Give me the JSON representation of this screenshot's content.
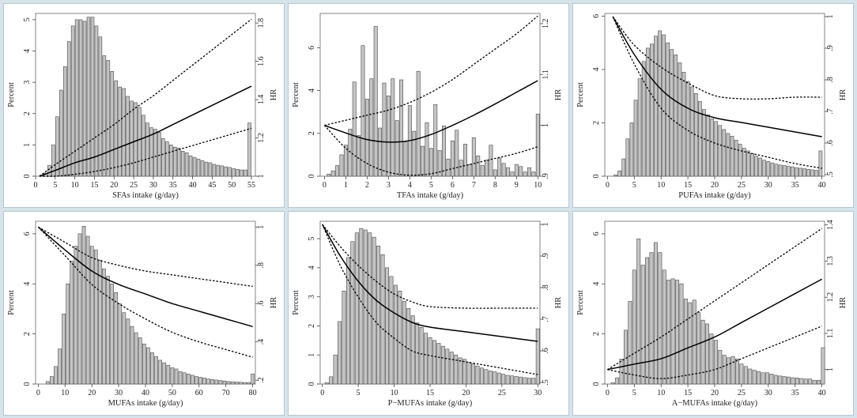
{
  "figure": {
    "background": "#d6e3ea",
    "bar_fill": "#c4c4c4",
    "bar_stroke": "#4a4a4a",
    "line_color": "#000000"
  },
  "chart_data": [
    {
      "type": "bar",
      "xlabel": "SFAs intake (g/day)",
      "ylabel": "Percent",
      "y2label": "HR",
      "xlim": [
        0,
        56
      ],
      "ylim": [
        0,
        5.2
      ],
      "y2lim": [
        1.0,
        1.85
      ],
      "xticks": [
        0,
        5,
        10,
        15,
        20,
        25,
        30,
        35,
        40,
        45,
        50,
        55
      ],
      "yticks": [
        0,
        1,
        2,
        3,
        4,
        5
      ],
      "y2ticks": [
        1,
        1.2,
        1.4,
        1.6,
        1.8
      ],
      "y2ticklabels": [
        "1",
        "1.2",
        "1.4",
        "1.6",
        "1.8"
      ],
      "bar_x": [
        1.5,
        2.5,
        3.5,
        4.5,
        5.5,
        6.5,
        7.5,
        8.5,
        9.5,
        10.5,
        11.5,
        12.5,
        13.5,
        14.5,
        15.5,
        16.5,
        17.5,
        18.5,
        19.5,
        20.5,
        21.5,
        22.5,
        23.5,
        24.5,
        25.5,
        26.5,
        27.5,
        28.5,
        29.5,
        30.5,
        31.5,
        32.5,
        33.5,
        34.5,
        35.5,
        36.5,
        37.5,
        38.5,
        39.5,
        40.5,
        41.5,
        42.5,
        43.5,
        44.5,
        45.5,
        46.5,
        47.5,
        48.5,
        49.5,
        50.5,
        51.5,
        52.5,
        53.5,
        54.5
      ],
      "bar_values": [
        0.03,
        0.1,
        0.35,
        1.0,
        1.9,
        2.75,
        3.5,
        4.3,
        4.8,
        5.0,
        5.0,
        4.95,
        5.08,
        5.08,
        4.8,
        4.45,
        3.85,
        3.7,
        3.35,
        3.05,
        2.85,
        2.8,
        2.55,
        2.4,
        2.35,
        2.2,
        1.95,
        1.7,
        1.55,
        1.5,
        1.4,
        1.2,
        1.1,
        1.0,
        0.93,
        0.9,
        0.8,
        0.75,
        0.65,
        0.6,
        0.55,
        0.5,
        0.45,
        0.43,
        0.38,
        0.35,
        0.33,
        0.3,
        0.28,
        0.24,
        0.22,
        0.2,
        0.2,
        1.7
      ],
      "hr": {
        "x": [
          1,
          5,
          10,
          15,
          20,
          25,
          30,
          35,
          40,
          45,
          50,
          55
        ],
        "estimate": [
          1.0,
          1.03,
          1.07,
          1.1,
          1.14,
          1.18,
          1.22,
          1.27,
          1.32,
          1.37,
          1.42,
          1.47
        ],
        "lower": [
          1.0,
          1.0,
          1.01,
          1.025,
          1.045,
          1.07,
          1.1,
          1.13,
          1.16,
          1.19,
          1.22,
          1.25
        ],
        "upper": [
          1.0,
          1.06,
          1.13,
          1.2,
          1.27,
          1.35,
          1.42,
          1.5,
          1.58,
          1.66,
          1.74,
          1.82
        ]
      }
    },
    {
      "type": "bar",
      "xlabel": "TFAs intake (g/day)",
      "ylabel": "Percent",
      "y2label": "HR",
      "xlim": [
        -0.2,
        10.1
      ],
      "ylim": [
        0,
        7.6
      ],
      "y2lim": [
        0.9,
        1.22
      ],
      "xticks": [
        0,
        1,
        2,
        3,
        4,
        5,
        6,
        7,
        8,
        9,
        10
      ],
      "yticks": [
        0,
        2,
        4,
        6
      ],
      "y2ticks": [
        0.9,
        1.0,
        1.1,
        1.2
      ],
      "y2ticklabels": [
        ".9",
        "1",
        "1.1",
        "1.2"
      ],
      "bar_x": [
        0.2,
        0.4,
        0.6,
        0.8,
        1.0,
        1.2,
        1.4,
        1.6,
        1.8,
        2.0,
        2.2,
        2.4,
        2.6,
        2.8,
        3.0,
        3.2,
        3.4,
        3.6,
        3.8,
        4.0,
        4.2,
        4.4,
        4.6,
        4.8,
        5.0,
        5.2,
        5.4,
        5.6,
        5.8,
        6.0,
        6.2,
        6.4,
        6.6,
        6.8,
        7.0,
        7.2,
        7.4,
        7.6,
        7.8,
        8.0,
        8.2,
        8.4,
        8.6,
        8.8,
        9.0,
        9.2,
        9.4,
        9.6,
        9.8,
        10.0
      ],
      "bar_values": [
        0.1,
        0.25,
        0.5,
        1.0,
        1.45,
        2.2,
        4.4,
        1.9,
        6.1,
        3.6,
        4.55,
        7.0,
        2.25,
        4.35,
        3.75,
        4.55,
        2.6,
        4.5,
        1.6,
        3.3,
        2.1,
        4.9,
        1.4,
        2.5,
        1.3,
        3.35,
        1.2,
        2.35,
        0.8,
        1.65,
        2.15,
        0.75,
        1.5,
        0.55,
        1.8,
        0.95,
        0.5,
        0.75,
        1.45,
        0.3,
        0.85,
        0.6,
        0.4,
        0.2,
        0.55,
        0.45,
        0.2,
        0.4,
        0.2,
        2.9
      ],
      "hr": {
        "x": [
          0,
          1,
          2,
          3,
          4,
          5,
          6,
          7,
          8,
          9,
          10
        ],
        "estimate": [
          1.0,
          0.985,
          0.972,
          0.967,
          0.97,
          0.982,
          1.0,
          1.02,
          1.042,
          1.065,
          1.088
        ],
        "lower": [
          1.0,
          0.955,
          0.925,
          0.908,
          0.902,
          0.905,
          0.915,
          0.925,
          0.935,
          0.945,
          0.958
        ],
        "upper": [
          1.0,
          1.01,
          1.02,
          1.03,
          1.045,
          1.065,
          1.09,
          1.12,
          1.15,
          1.18,
          1.215
        ]
      }
    },
    {
      "type": "bar",
      "xlabel": "PUFAs intake (g/day)",
      "ylabel": "Percent",
      "y2label": "HR",
      "xlim": [
        -0.5,
        40.5
      ],
      "ylim": [
        0,
        6.1
      ],
      "y2lim": [
        0.495,
        1.01
      ],
      "xticks": [
        0,
        5,
        10,
        15,
        20,
        25,
        30,
        35,
        40
      ],
      "yticks": [
        0,
        2,
        4,
        6
      ],
      "y2ticks": [
        0.5,
        0.6,
        0.7,
        0.8,
        0.9,
        1.0
      ],
      "y2ticklabels": [
        ".5",
        ".6",
        ".7",
        ".8",
        ".9",
        "1"
      ],
      "bar_x": [
        1.5,
        2.25,
        3.0,
        3.75,
        4.5,
        5.25,
        6.0,
        6.75,
        7.5,
        8.25,
        9.0,
        9.75,
        10.5,
        11.25,
        12.0,
        12.75,
        13.5,
        14.25,
        15.0,
        15.75,
        16.5,
        17.25,
        18.0,
        18.75,
        19.5,
        20.25,
        21.0,
        21.75,
        22.5,
        23.25,
        24.0,
        24.75,
        25.5,
        26.25,
        27.0,
        27.75,
        28.5,
        29.25,
        30.0,
        30.75,
        31.5,
        32.25,
        33.0,
        33.75,
        34.5,
        35.25,
        36.0,
        36.75,
        37.5,
        38.25,
        39.0,
        39.75
      ],
      "bar_values": [
        0.05,
        0.2,
        0.65,
        1.4,
        2.0,
        2.85,
        3.65,
        4.3,
        4.8,
        4.95,
        5.25,
        5.45,
        5.3,
        5.0,
        4.75,
        4.55,
        4.25,
        3.9,
        3.55,
        3.35,
        3.1,
        2.8,
        2.5,
        2.3,
        2.15,
        2.05,
        1.9,
        1.75,
        1.6,
        1.5,
        1.35,
        1.2,
        1.05,
        0.95,
        0.85,
        0.75,
        0.68,
        0.6,
        0.55,
        0.5,
        0.45,
        0.42,
        0.4,
        0.37,
        0.35,
        0.32,
        0.3,
        0.28,
        0.26,
        0.24,
        0.22,
        0.95
      ],
      "hr": {
        "x": [
          1,
          5,
          10,
          15,
          20,
          25,
          30,
          35,
          40
        ],
        "estimate": [
          1.0,
          0.88,
          0.77,
          0.71,
          0.68,
          0.665,
          0.65,
          0.635,
          0.62
        ],
        "lower": [
          1.0,
          0.85,
          0.71,
          0.64,
          0.6,
          0.575,
          0.555,
          0.535,
          0.52
        ],
        "upper": [
          1.0,
          0.91,
          0.84,
          0.79,
          0.75,
          0.74,
          0.74,
          0.745,
          0.745
        ]
      }
    },
    {
      "type": "bar",
      "xlabel": "MUFAs intake (g/day)",
      "ylabel": "Percent",
      "y2label": "HR",
      "xlim": [
        -1,
        81
      ],
      "ylim": [
        0,
        6.5
      ],
      "y2lim": [
        0.18,
        1.03
      ],
      "xticks": [
        0,
        10,
        20,
        30,
        40,
        50,
        60,
        70,
        80
      ],
      "yticks": [
        0,
        2,
        4,
        6
      ],
      "y2ticks": [
        0.2,
        0.4,
        0.6,
        0.8,
        1.0
      ],
      "y2ticklabels": [
        ".2",
        ".4",
        ".6",
        ".8",
        "1"
      ],
      "bar_x": [
        3.5,
        5.0,
        6.5,
        8.0,
        9.5,
        11.0,
        12.5,
        14.0,
        15.5,
        17.0,
        18.5,
        20.0,
        21.5,
        23.0,
        24.5,
        26.0,
        27.5,
        29.0,
        30.5,
        32.0,
        33.5,
        35.0,
        36.5,
        38.0,
        39.5,
        41.0,
        42.5,
        44.0,
        45.5,
        47.0,
        48.5,
        50.0,
        51.5,
        53.0,
        54.5,
        56.0,
        57.5,
        59.0,
        60.5,
        62.0,
        63.5,
        65.0,
        66.5,
        68.0,
        69.5,
        71.0,
        72.5,
        74.0,
        75.5,
        77.0,
        78.5,
        80.0
      ],
      "bar_values": [
        0.1,
        0.3,
        0.7,
        1.4,
        2.8,
        4.0,
        4.9,
        5.5,
        6.0,
        6.3,
        5.9,
        5.5,
        5.35,
        4.95,
        4.6,
        4.3,
        4.0,
        3.65,
        3.2,
        2.85,
        2.6,
        2.3,
        2.05,
        1.85,
        1.6,
        1.45,
        1.25,
        1.1,
        0.95,
        0.85,
        0.75,
        0.65,
        0.6,
        0.5,
        0.45,
        0.4,
        0.35,
        0.3,
        0.27,
        0.24,
        0.2,
        0.18,
        0.16,
        0.14,
        0.12,
        0.1,
        0.09,
        0.08,
        0.07,
        0.06,
        0.06,
        0.4
      ],
      "hr": {
        "x": [
          0,
          10,
          20,
          30,
          40,
          50,
          60,
          70,
          80
        ],
        "estimate": [
          1.0,
          0.88,
          0.77,
          0.7,
          0.65,
          0.6,
          0.56,
          0.52,
          0.48
        ],
        "lower": [
          1.0,
          0.85,
          0.7,
          0.6,
          0.52,
          0.45,
          0.4,
          0.36,
          0.32
        ],
        "upper": [
          1.0,
          0.92,
          0.84,
          0.8,
          0.77,
          0.75,
          0.73,
          0.71,
          0.69
        ]
      }
    },
    {
      "type": "bar",
      "xlabel": "P−MUFAs intake (g/day)",
      "ylabel": "Percent",
      "y2label": "HR",
      "xlim": [
        -0.3,
        30.3
      ],
      "ylim": [
        0,
        5.6
      ],
      "y2lim": [
        0.495,
        1.01
      ],
      "xticks": [
        0,
        5,
        10,
        15,
        20,
        25,
        30
      ],
      "yticks": [
        0,
        1,
        2,
        3,
        4,
        5
      ],
      "y2ticks": [
        0.5,
        0.6,
        0.7,
        0.8,
        0.9,
        1.0
      ],
      "y2ticklabels": [
        ".5",
        ".6",
        ".7",
        ".8",
        ".9",
        "1"
      ],
      "bar_x": [
        0.6,
        1.2,
        1.8,
        2.4,
        3.0,
        3.6,
        4.2,
        4.8,
        5.4,
        6.0,
        6.6,
        7.2,
        7.8,
        8.4,
        9.0,
        9.6,
        10.2,
        10.8,
        11.4,
        12.0,
        12.6,
        13.2,
        13.8,
        14.4,
        15.0,
        15.6,
        16.2,
        16.8,
        17.4,
        18.0,
        18.6,
        19.2,
        19.8,
        20.4,
        21.0,
        21.6,
        22.2,
        22.8,
        23.4,
        24.0,
        24.6,
        25.2,
        25.8,
        26.4,
        27.0,
        27.6,
        28.2,
        28.8,
        29.4,
        30.0
      ],
      "bar_values": [
        0.05,
        0.25,
        1.0,
        2.15,
        3.2,
        4.35,
        4.9,
        5.2,
        5.35,
        5.3,
        5.2,
        5.05,
        4.75,
        4.45,
        4.0,
        3.7,
        3.4,
        3.2,
        2.85,
        2.6,
        2.35,
        2.1,
        1.95,
        1.75,
        1.6,
        1.5,
        1.4,
        1.3,
        1.2,
        1.1,
        1.0,
        0.9,
        0.85,
        0.75,
        0.7,
        0.62,
        0.55,
        0.5,
        0.45,
        0.42,
        0.38,
        0.34,
        0.3,
        0.28,
        0.26,
        0.24,
        0.22,
        0.2,
        0.2,
        1.9
      ],
      "hr": {
        "x": [
          0,
          2.5,
          5,
          7.5,
          10,
          12.5,
          15,
          20,
          25,
          30
        ],
        "estimate": [
          1.0,
          0.9,
          0.82,
          0.76,
          0.72,
          0.69,
          0.675,
          0.66,
          0.645,
          0.63
        ],
        "lower": [
          1.0,
          0.87,
          0.77,
          0.69,
          0.64,
          0.6,
          0.585,
          0.565,
          0.545,
          0.525
        ],
        "upper": [
          1.0,
          0.93,
          0.87,
          0.82,
          0.78,
          0.755,
          0.74,
          0.735,
          0.735,
          0.735
        ]
      }
    },
    {
      "type": "bar",
      "xlabel": "A−MUFAs intake (g/day)",
      "ylabel": "Percent",
      "y2label": "HR",
      "xlim": [
        -0.5,
        40.5
      ],
      "ylim": [
        0,
        6.5
      ],
      "y2lim": [
        0.96,
        1.41
      ],
      "xticks": [
        0,
        5,
        10,
        15,
        20,
        25,
        30,
        35,
        40
      ],
      "yticks": [
        0,
        2,
        4,
        6
      ],
      "y2ticks": [
        1.0,
        1.1,
        1.2,
        1.3,
        1.4
      ],
      "y2ticklabels": [
        "1",
        "1.1",
        "1.2",
        "1.3",
        "1.4"
      ],
      "bar_x": [
        1.0,
        1.8,
        2.6,
        3.4,
        4.2,
        5.0,
        5.8,
        6.6,
        7.4,
        8.2,
        9.0,
        9.8,
        10.6,
        11.4,
        12.2,
        13.0,
        13.8,
        14.6,
        15.4,
        16.2,
        17.0,
        17.8,
        18.6,
        19.4,
        20.2,
        21.0,
        21.8,
        22.6,
        23.4,
        24.2,
        25.0,
        25.8,
        26.6,
        27.4,
        28.2,
        29.0,
        29.8,
        30.6,
        31.4,
        32.2,
        33.0,
        33.8,
        34.6,
        35.4,
        36.2,
        37.0,
        37.8,
        38.6,
        39.4,
        40.2
      ],
      "bar_values": [
        0.05,
        0.25,
        1.0,
        2.15,
        3.3,
        4.55,
        5.8,
        4.75,
        5.05,
        5.25,
        5.65,
        5.25,
        4.55,
        4.15,
        4.2,
        4.15,
        4.0,
        3.4,
        3.25,
        3.35,
        2.85,
        2.55,
        2.4,
        2.0,
        1.75,
        1.35,
        1.15,
        1.05,
        1.1,
        1.0,
        0.8,
        0.7,
        0.6,
        0.55,
        0.5,
        0.45,
        0.45,
        0.4,
        0.35,
        0.32,
        0.3,
        0.28,
        0.25,
        0.24,
        0.22,
        0.2,
        0.2,
        0.15,
        0.15,
        1.45
      ],
      "hr": {
        "x": [
          0,
          5,
          10,
          15,
          20,
          25,
          30,
          35,
          40
        ],
        "estimate": [
          1.0,
          1.015,
          1.03,
          1.06,
          1.09,
          1.13,
          1.17,
          1.21,
          1.25
        ],
        "lower": [
          1.0,
          0.985,
          0.975,
          0.985,
          1.0,
          1.03,
          1.06,
          1.09,
          1.12
        ],
        "upper": [
          1.0,
          1.045,
          1.09,
          1.14,
          1.19,
          1.24,
          1.29,
          1.34,
          1.39
        ]
      }
    }
  ]
}
